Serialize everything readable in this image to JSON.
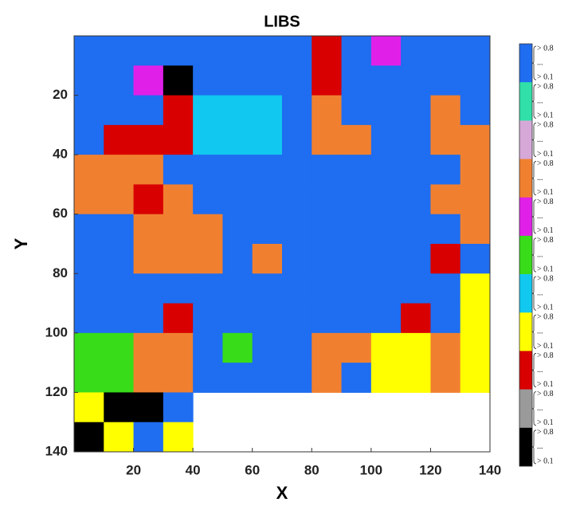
{
  "chart_data": {
    "type": "heatmap",
    "title": "LIBS",
    "x_label": "X",
    "y_label": "Y",
    "xlim": [
      0,
      140
    ],
    "ylim": [
      0,
      140
    ],
    "y_reversed": true,
    "xticks": [
      20,
      40,
      60,
      80,
      100,
      120,
      140
    ],
    "yticks": [
      20,
      40,
      60,
      80,
      100,
      120,
      140
    ],
    "cell_size": 10,
    "values": [
      [
        0,
        0,
        0,
        0,
        0,
        0,
        0,
        0,
        8,
        0,
        4,
        0,
        0,
        0
      ],
      [
        0,
        0,
        4,
        10,
        0,
        0,
        0,
        0,
        8,
        0,
        0,
        0,
        0,
        0
      ],
      [
        0,
        0,
        0,
        8,
        6,
        6,
        6,
        0,
        3,
        0,
        0,
        0,
        3,
        0
      ],
      [
        0,
        8,
        8,
        8,
        6,
        6,
        6,
        0,
        3,
        3,
        0,
        0,
        3,
        3
      ],
      [
        3,
        3,
        3,
        0,
        0,
        0,
        0,
        0,
        0,
        0,
        0,
        0,
        0,
        3
      ],
      [
        3,
        3,
        8,
        3,
        0,
        0,
        0,
        0,
        0,
        0,
        0,
        0,
        3,
        3
      ],
      [
        0,
        0,
        3,
        3,
        3,
        0,
        0,
        0,
        0,
        0,
        0,
        0,
        0,
        3
      ],
      [
        0,
        0,
        3,
        3,
        3,
        0,
        3,
        0,
        0,
        0,
        0,
        0,
        8,
        0
      ],
      [
        0,
        0,
        0,
        0,
        0,
        0,
        0,
        0,
        0,
        0,
        0,
        0,
        0,
        7
      ],
      [
        0,
        0,
        0,
        8,
        0,
        0,
        0,
        0,
        0,
        0,
        0,
        8,
        0,
        7
      ],
      [
        5,
        5,
        3,
        3,
        0,
        5,
        0,
        0,
        3,
        3,
        7,
        7,
        3,
        7
      ],
      [
        5,
        5,
        3,
        3,
        0,
        0,
        0,
        0,
        3,
        0,
        7,
        7,
        3,
        7
      ],
      [
        7,
        10,
        10,
        0,
        null,
        null,
        null,
        null,
        null,
        null,
        null,
        null,
        null,
        null
      ],
      [
        10,
        7,
        0,
        7,
        null,
        null,
        null,
        null,
        null,
        null,
        null,
        null,
        null,
        null
      ]
    ],
    "classes": [
      {
        "color": "#1f6df0",
        "labels": [
          "> 0.8",
          "...",
          "> 0.1"
        ]
      },
      {
        "color": "#30e0a8",
        "labels": [
          "> 0.8",
          "...",
          "> 0.1"
        ]
      },
      {
        "color": "#d6a8d8",
        "labels": [
          "> 0.8",
          "...",
          "> 0.1"
        ]
      },
      {
        "color": "#f08030",
        "labels": [
          "> 0.8",
          "...",
          "> 0.1"
        ]
      },
      {
        "color": "#e020e8",
        "labels": [
          "> 0.8",
          "...",
          "> 0.1"
        ]
      },
      {
        "color": "#38dc18",
        "labels": [
          "> 0.8",
          "...",
          "> 0.1"
        ]
      },
      {
        "color": "#10c8f0",
        "labels": [
          "> 0.8",
          "...",
          "> 0.1"
        ]
      },
      {
        "color": "#ffff00",
        "labels": [
          "> 0.8",
          "...",
          "> 0.1"
        ]
      },
      {
        "color": "#d80000",
        "labels": [
          "> 0.8",
          "...",
          "> 0.1"
        ]
      },
      {
        "color": "#9a9a9a",
        "labels": [
          "> 0.8",
          "...",
          "> 0.1"
        ]
      },
      {
        "color": "#000000",
        "labels": [
          "> 0.8",
          "...",
          "> 0.1"
        ]
      }
    ]
  }
}
